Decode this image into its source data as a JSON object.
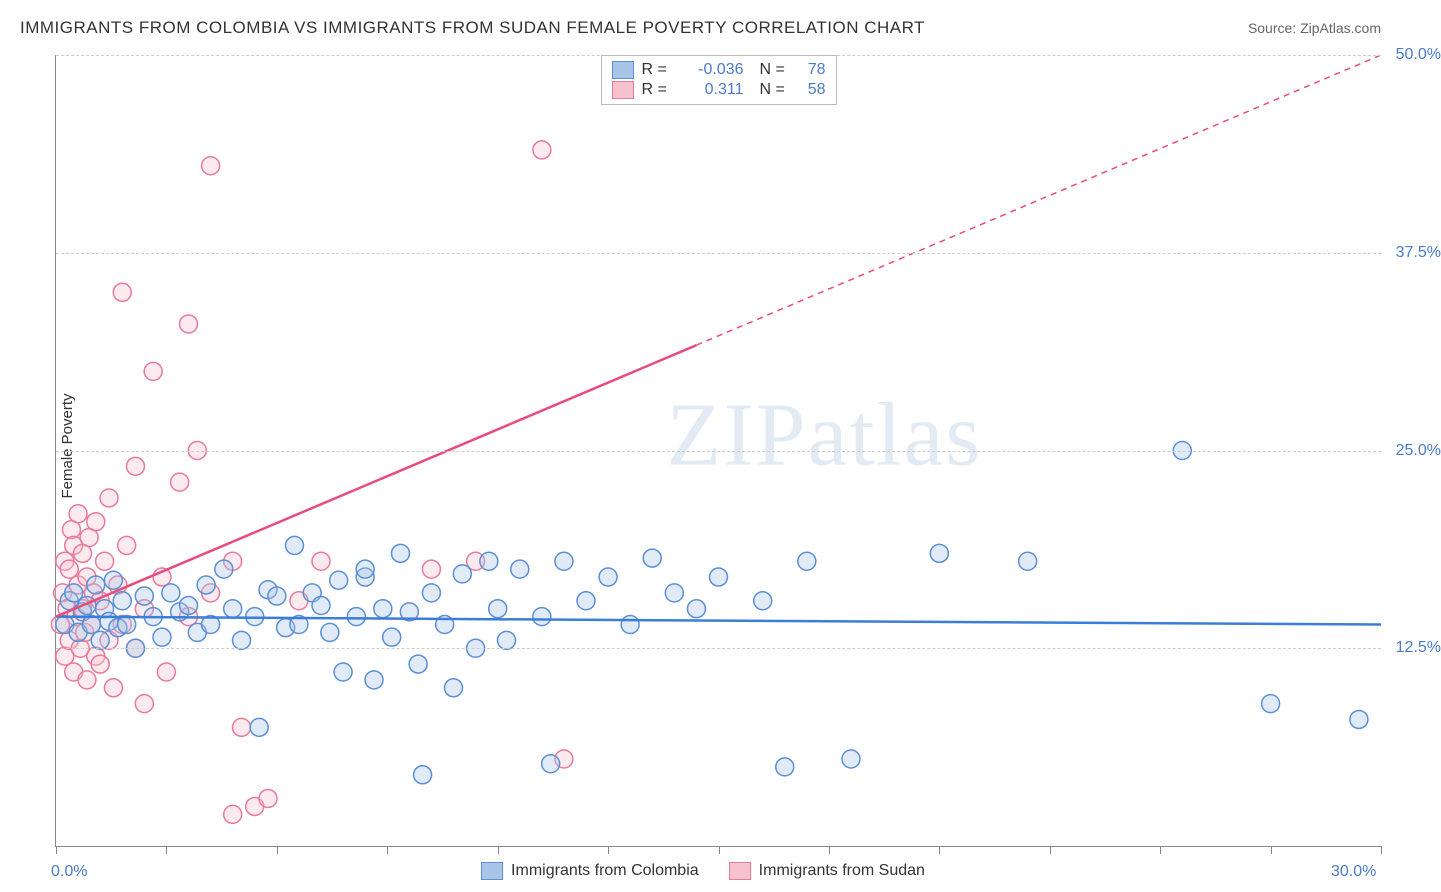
{
  "title": "IMMIGRANTS FROM COLOMBIA VS IMMIGRANTS FROM SUDAN FEMALE POVERTY CORRELATION CHART",
  "source": "Source: ZipAtlas.com",
  "ylabel": "Female Poverty",
  "watermark": "ZIPatlas",
  "chart": {
    "type": "scatter",
    "xlim": [
      0,
      30
    ],
    "ylim": [
      0,
      50
    ],
    "x_ticks": [
      0,
      2.5,
      5,
      7.5,
      10,
      12.5,
      15,
      17.5,
      20,
      22.5,
      25,
      27.5,
      30
    ],
    "x_tick_labels": {
      "0": "0.0%",
      "30": "30.0%"
    },
    "y_gridlines": [
      12.5,
      25,
      37.5,
      50
    ],
    "y_tick_labels": {
      "12.5": "12.5%",
      "25": "25.0%",
      "37.5": "37.5%",
      "50": "50.0%"
    },
    "background_color": "#ffffff",
    "grid_color": "#cccccc",
    "axis_color": "#888888",
    "tick_label_color": "#4a7bc8",
    "tick_label_fontsize": 16,
    "marker_radius": 9,
    "marker_fill_opacity": 0.35,
    "marker_stroke_width": 1.5,
    "trend_line_width": 2.5
  },
  "series": {
    "colombia": {
      "label": "Immigrants from Colombia",
      "color_fill": "#a8c5e8",
      "color_stroke": "#5b8fd6",
      "R": "-0.036",
      "N": "78",
      "trend": {
        "x1": 0,
        "y1": 14.5,
        "x2": 30,
        "y2": 14.0,
        "color": "#3b7dd8"
      },
      "points": [
        [
          0.2,
          14
        ],
        [
          0.3,
          15.5
        ],
        [
          0.4,
          16
        ],
        [
          0.5,
          13.5
        ],
        [
          0.6,
          14.8
        ],
        [
          0.7,
          15.2
        ],
        [
          0.8,
          14
        ],
        [
          0.9,
          16.5
        ],
        [
          1.0,
          13
        ],
        [
          1.1,
          15
        ],
        [
          1.2,
          14.2
        ],
        [
          1.3,
          16.8
        ],
        [
          1.4,
          13.8
        ],
        [
          1.5,
          15.5
        ],
        [
          1.6,
          14
        ],
        [
          1.8,
          12.5
        ],
        [
          2.0,
          15.8
        ],
        [
          2.2,
          14.5
        ],
        [
          2.4,
          13.2
        ],
        [
          2.6,
          16
        ],
        [
          2.8,
          14.8
        ],
        [
          3.0,
          15.2
        ],
        [
          3.2,
          13.5
        ],
        [
          3.4,
          16.5
        ],
        [
          3.5,
          14
        ],
        [
          3.8,
          17.5
        ],
        [
          4.0,
          15
        ],
        [
          4.2,
          13
        ],
        [
          4.5,
          14.5
        ],
        [
          4.6,
          7.5
        ],
        [
          4.8,
          16.2
        ],
        [
          5.0,
          15.8
        ],
        [
          5.2,
          13.8
        ],
        [
          5.4,
          19
        ],
        [
          5.5,
          14
        ],
        [
          5.8,
          16
        ],
        [
          6.0,
          15.2
        ],
        [
          6.2,
          13.5
        ],
        [
          6.4,
          16.8
        ],
        [
          6.5,
          11
        ],
        [
          6.8,
          14.5
        ],
        [
          7.0,
          17
        ],
        [
          7.2,
          10.5
        ],
        [
          7.4,
          15
        ],
        [
          7.6,
          13.2
        ],
        [
          7.8,
          18.5
        ],
        [
          8.0,
          14.8
        ],
        [
          8.2,
          11.5
        ],
        [
          8.5,
          16
        ],
        [
          8.8,
          14
        ],
        [
          9.0,
          10
        ],
        [
          9.2,
          17.2
        ],
        [
          9.5,
          12.5
        ],
        [
          9.8,
          18
        ],
        [
          10.0,
          15
        ],
        [
          10.2,
          13
        ],
        [
          10.5,
          17.5
        ],
        [
          11.0,
          14.5
        ],
        [
          11.5,
          18
        ],
        [
          12.0,
          15.5
        ],
        [
          12.5,
          17
        ],
        [
          13.0,
          14
        ],
        [
          13.5,
          18.2
        ],
        [
          14.0,
          16
        ],
        [
          14.5,
          15
        ],
        [
          15.0,
          17
        ],
        [
          16.0,
          15.5
        ],
        [
          16.5,
          5
        ],
        [
          17.0,
          18
        ],
        [
          18.0,
          5.5
        ],
        [
          20.0,
          18.5
        ],
        [
          22.0,
          18
        ],
        [
          25.5,
          25
        ],
        [
          27.5,
          9
        ],
        [
          29.5,
          8
        ],
        [
          8.3,
          4.5
        ],
        [
          11.2,
          5.2
        ],
        [
          7.0,
          17.5
        ]
      ]
    },
    "sudan": {
      "label": "Immigrants from Sudan",
      "color_fill": "#f5c2cd",
      "color_stroke": "#e87a9a",
      "R": "0.311",
      "N": "58",
      "trend": {
        "x1": 0,
        "y1": 14.5,
        "x2": 30,
        "y2": 50,
        "solid_until_x": 14.5,
        "color": "#e84c7a"
      },
      "points": [
        [
          0.1,
          14
        ],
        [
          0.15,
          16
        ],
        [
          0.2,
          12
        ],
        [
          0.2,
          18
        ],
        [
          0.25,
          15
        ],
        [
          0.3,
          13
        ],
        [
          0.3,
          17.5
        ],
        [
          0.35,
          20
        ],
        [
          0.4,
          11
        ],
        [
          0.4,
          19
        ],
        [
          0.45,
          14.5
        ],
        [
          0.5,
          16.5
        ],
        [
          0.5,
          21
        ],
        [
          0.55,
          12.5
        ],
        [
          0.6,
          18.5
        ],
        [
          0.6,
          15
        ],
        [
          0.65,
          13.5
        ],
        [
          0.7,
          17
        ],
        [
          0.7,
          10.5
        ],
        [
          0.75,
          19.5
        ],
        [
          0.8,
          14
        ],
        [
          0.85,
          16
        ],
        [
          0.9,
          12
        ],
        [
          0.9,
          20.5
        ],
        [
          1.0,
          15.5
        ],
        [
          1.0,
          11.5
        ],
        [
          1.1,
          18
        ],
        [
          1.2,
          13
        ],
        [
          1.2,
          22
        ],
        [
          1.3,
          10
        ],
        [
          1.4,
          16.5
        ],
        [
          1.5,
          14
        ],
        [
          1.5,
          35
        ],
        [
          1.6,
          19
        ],
        [
          1.8,
          12.5
        ],
        [
          1.8,
          24
        ],
        [
          2.0,
          15
        ],
        [
          2.0,
          9
        ],
        [
          2.2,
          30
        ],
        [
          2.4,
          17
        ],
        [
          2.5,
          11
        ],
        [
          2.8,
          23
        ],
        [
          3.0,
          14.5
        ],
        [
          3.0,
          33
        ],
        [
          3.2,
          25
        ],
        [
          3.5,
          16
        ],
        [
          3.5,
          43
        ],
        [
          4.0,
          18
        ],
        [
          4.2,
          7.5
        ],
        [
          4.5,
          2.5
        ],
        [
          4.8,
          3
        ],
        [
          5.5,
          15.5
        ],
        [
          6.0,
          18
        ],
        [
          8.5,
          17.5
        ],
        [
          9.5,
          18
        ],
        [
          11.0,
          44
        ],
        [
          11.5,
          5.5
        ],
        [
          4.0,
          2.0
        ]
      ]
    }
  },
  "legend_top": [
    {
      "swatch_fill": "#a8c5e8",
      "swatch_stroke": "#5b8fd6",
      "R": "-0.036",
      "N": "78"
    },
    {
      "swatch_fill": "#f5c2cd",
      "swatch_stroke": "#e87a9a",
      "R": "0.311",
      "N": "58"
    }
  ]
}
